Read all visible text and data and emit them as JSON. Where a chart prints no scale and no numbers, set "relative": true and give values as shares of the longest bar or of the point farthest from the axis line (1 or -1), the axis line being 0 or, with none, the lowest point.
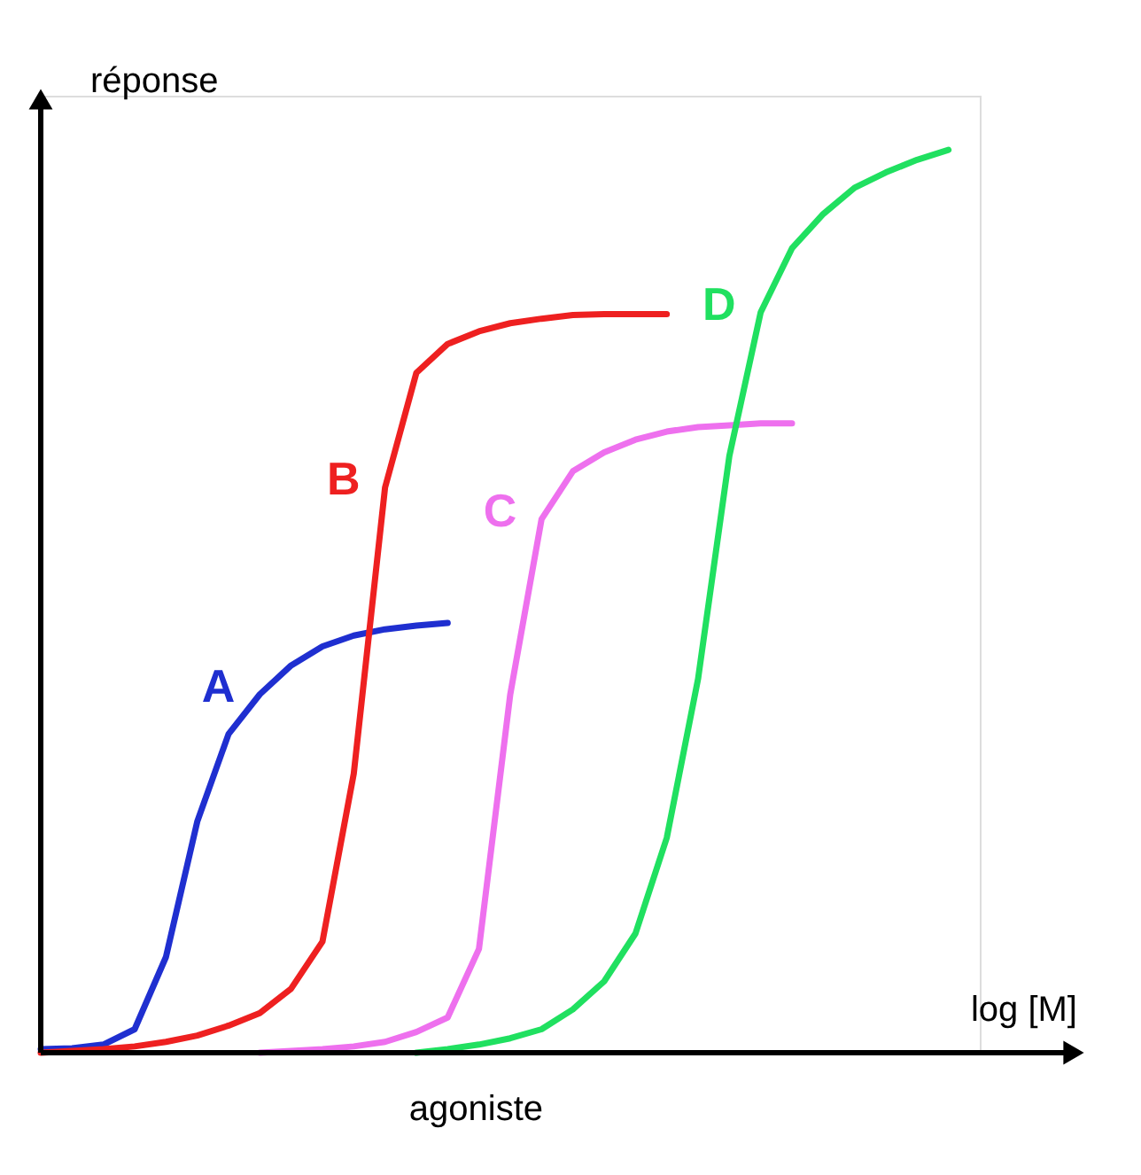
{
  "chart_data": {
    "type": "line",
    "relative": true,
    "ylabel": "réponse",
    "xlabel": "log [M]",
    "annotations": [
      "agoniste"
    ],
    "tick_labels": false,
    "grid": false,
    "marker": "none",
    "line_style": "solid",
    "categories": [
      null,
      null,
      null,
      null,
      null,
      null,
      null,
      null,
      null,
      null,
      null,
      null,
      null,
      null,
      null,
      null,
      null,
      null,
      null,
      null,
      null,
      null,
      null,
      null,
      null,
      null,
      null,
      null,
      null,
      null,
      null
    ],
    "series": [
      {
        "name": "A",
        "color": "#1f2fd0",
        "values": [
          0.004,
          0.005,
          0.009,
          0.026,
          0.106,
          0.256,
          0.353,
          0.397,
          0.429,
          0.45,
          0.462,
          0.469,
          0.473,
          0.476,
          null,
          null,
          null,
          null,
          null,
          null,
          null,
          null,
          null,
          null,
          null,
          null,
          null,
          null,
          null,
          null,
          null
        ]
      },
      {
        "name": "B",
        "color": "#ee2020",
        "values": [
          0,
          0.002,
          0.004,
          0.007,
          0.012,
          0.019,
          0.03,
          0.044,
          0.071,
          0.123,
          0.309,
          0.626,
          0.753,
          0.785,
          0.799,
          0.808,
          0.813,
          0.817,
          0.818,
          0.818,
          0.818,
          null,
          null,
          null,
          null,
          null,
          null,
          null,
          null,
          null,
          null
        ]
      },
      {
        "name": "C",
        "color": "#ee70ee",
        "values": [
          null,
          null,
          null,
          null,
          null,
          null,
          null,
          0,
          0.002,
          0.004,
          0.007,
          0.012,
          0.023,
          0.039,
          0.115,
          0.397,
          0.591,
          0.644,
          0.665,
          0.679,
          0.688,
          0.693,
          0.695,
          0.697,
          0.697,
          null,
          null,
          null,
          null,
          null,
          null
        ]
      },
      {
        "name": "D",
        "color": "#20e060",
        "values": [
          null,
          null,
          null,
          null,
          null,
          null,
          null,
          null,
          null,
          null,
          null,
          null,
          0,
          0.004,
          0.009,
          0.016,
          0.026,
          0.048,
          0.079,
          0.132,
          0.238,
          0.414,
          0.661,
          0.82,
          0.891,
          0.929,
          0.958,
          0.975,
          0.989,
          1,
          null
        ]
      }
    ]
  }
}
